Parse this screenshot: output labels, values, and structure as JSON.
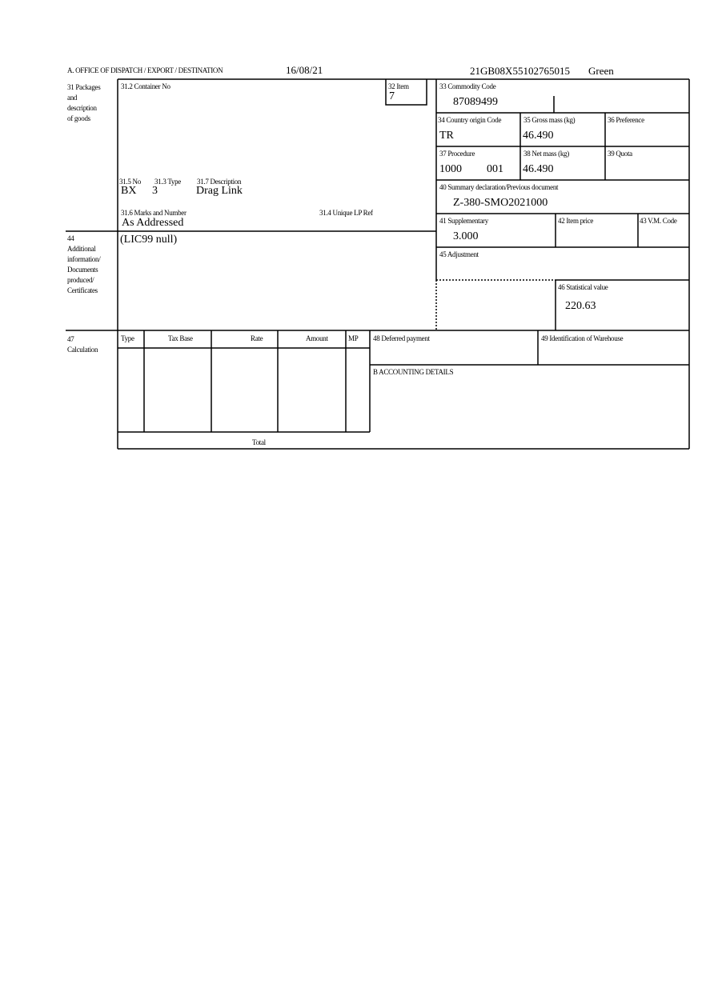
{
  "header": {
    "office_label": "A.  OFFICE OF DISPATCH / EXPORT / DESTINATION",
    "date": "16/08/21",
    "reference": "21GB08X55102765015",
    "route": "Green"
  },
  "box31": {
    "label_lines": [
      "31 Packages",
      "and",
      "description",
      "of goods"
    ],
    "container_label": "31.2 Container No",
    "no_label": "31.5 No",
    "type_label": "31.3 Type",
    "desc_label": "31.7 Description",
    "no_value": "BX",
    "type_value": "3",
    "desc_value": "Drag Link",
    "marks_label": "31.6 Marks and Number",
    "marks_value": "As Addressed",
    "unique_ref_label": "31.4 Unique LP Ref"
  },
  "box32": {
    "label": "32 Item",
    "value": "7"
  },
  "box33": {
    "label": "33 Commodity Code",
    "value": "87089499"
  },
  "box34": {
    "label": "34 Country origin Code",
    "value": "TR"
  },
  "box35": {
    "label": "35 Gross mass (kg)",
    "value": "46.490"
  },
  "box36": {
    "label": "36 Preference"
  },
  "box37": {
    "label": "37 Procedure",
    "value1": "1000",
    "value2": "001"
  },
  "box38": {
    "label": "38 Net mass (kg)",
    "value": "46.490"
  },
  "box39": {
    "label": "39 Quota"
  },
  "box40": {
    "label": "40 Summary declaration/Previous document",
    "value": "Z-380-SMO2021000"
  },
  "box41": {
    "label": "41 Supplementary",
    "value": "3.000"
  },
  "box42": {
    "label": "42 Item price"
  },
  "box43": {
    "label": "43 V.M. Code"
  },
  "box44": {
    "label_lines": [
      "44",
      "Additional",
      "information/",
      "Documents",
      "produced/",
      "Certificates"
    ],
    "value": "(LIC99 null)"
  },
  "box45": {
    "label": "45 Adjustment"
  },
  "box46": {
    "label": "46 Statistical value",
    "value": "220.63"
  },
  "box47": {
    "label_lines": [
      "47",
      "Calculation"
    ],
    "columns": [
      "Type",
      "Tax Base",
      "Rate",
      "Amount",
      "MP"
    ],
    "total_label": "Total"
  },
  "box48": {
    "label": "48 Deferred payment"
  },
  "box49": {
    "label": "49 Identification of Warehouse"
  },
  "boxB": {
    "label": "B ACCOUNTING DETAILS"
  }
}
